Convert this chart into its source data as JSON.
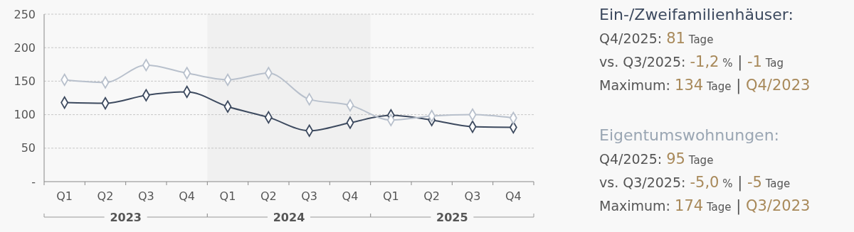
{
  "chart_data": {
    "type": "line",
    "categories": [
      "Q1",
      "Q2",
      "Q3",
      "Q4",
      "Q1",
      "Q2",
      "Q3",
      "Q4",
      "Q1",
      "Q2",
      "Q3",
      "Q4"
    ],
    "series": [
      {
        "name": "Ein-/Zweifamilienhäuser:",
        "color": "#3d4a5f",
        "values": [
          118,
          117,
          129,
          134,
          112,
          96,
          76,
          88,
          99,
          92,
          82,
          81
        ]
      },
      {
        "name": "Eigentumswohnungen:",
        "color": "#b8c0cc",
        "values": [
          152,
          148,
          174,
          162,
          152,
          162,
          123,
          114,
          92,
          98,
          100,
          95
        ]
      }
    ],
    "ylim": [
      0,
      250
    ],
    "yticks": [
      {
        "value": 0,
        "label": "-"
      },
      50,
      100,
      150,
      200,
      250
    ],
    "grid": "y",
    "marker": "diamond",
    "annotations": [
      "2023",
      "2024",
      "2025",
      "Q4/2025: 81 Tage",
      "vs. Q3/2025: -1,2 % | -1 Tag",
      "Maximum: 134 Tage | Q4/2023",
      "Q4/2025: 95 Tage",
      "vs. Q3/2025: -5,0 % | -5 Tage",
      "Maximum: 174 Tage | Q3/2023"
    ]
  }
}
